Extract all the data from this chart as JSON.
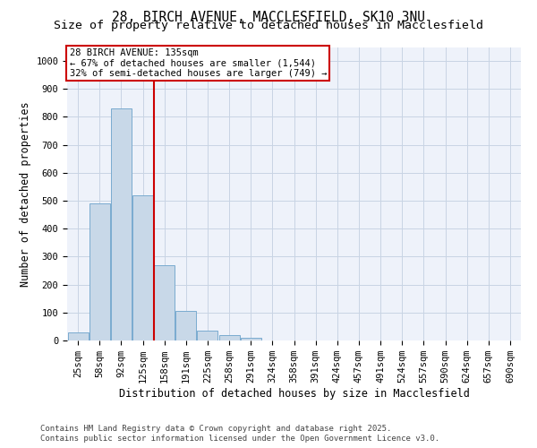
{
  "title_line1": "28, BIRCH AVENUE, MACCLESFIELD, SK10 3NU",
  "title_line2": "Size of property relative to detached houses in Macclesfield",
  "xlabel": "Distribution of detached houses by size in Macclesfield",
  "ylabel": "Number of detached properties",
  "categories": [
    "25sqm",
    "58sqm",
    "92sqm",
    "125sqm",
    "158sqm",
    "191sqm",
    "225sqm",
    "258sqm",
    "291sqm",
    "324sqm",
    "358sqm",
    "391sqm",
    "424sqm",
    "457sqm",
    "491sqm",
    "524sqm",
    "557sqm",
    "590sqm",
    "624sqm",
    "657sqm",
    "690sqm"
  ],
  "bar_values": [
    30,
    490,
    830,
    520,
    270,
    105,
    35,
    20,
    10,
    0,
    0,
    0,
    0,
    0,
    0,
    0,
    0,
    0,
    0,
    0,
    0
  ],
  "bar_color": "#c8d8e8",
  "bar_edge_color": "#7aabcf",
  "grid_color": "#c8d4e4",
  "background_color": "#eef2fa",
  "vline_x_index": 3,
  "vline_color": "#cc0000",
  "annotation_text": "28 BIRCH AVENUE: 135sqm\n← 67% of detached houses are smaller (1,544)\n32% of semi-detached houses are larger (749) →",
  "ylim": [
    0,
    1050
  ],
  "yticks": [
    0,
    100,
    200,
    300,
    400,
    500,
    600,
    700,
    800,
    900,
    1000
  ],
  "footer_line1": "Contains HM Land Registry data © Crown copyright and database right 2025.",
  "footer_line2": "Contains public sector information licensed under the Open Government Licence v3.0.",
  "title_fontsize": 10.5,
  "subtitle_fontsize": 9.5,
  "axis_label_fontsize": 8.5,
  "tick_fontsize": 7.5,
  "annotation_fontsize": 7.5,
  "footer_fontsize": 6.5
}
